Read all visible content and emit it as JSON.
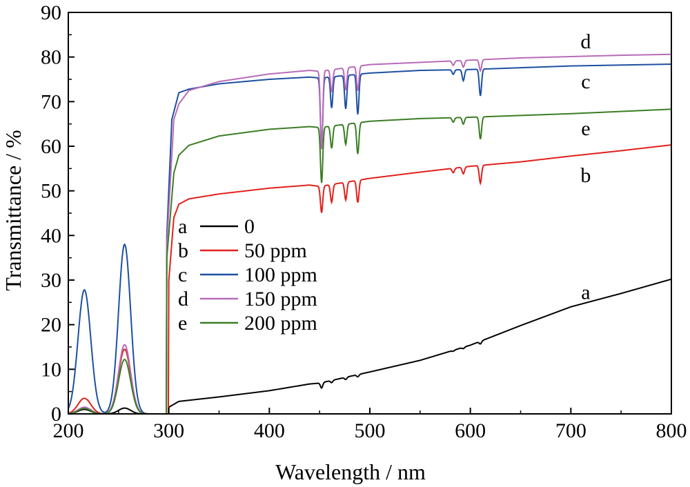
{
  "chart_data": {
    "type": "line",
    "title": "",
    "xlabel": "Wavelength / nm",
    "ylabel": "Transmittance / %",
    "xlim": [
      200,
      800
    ],
    "ylim": [
      0,
      90
    ],
    "xticks": [
      200,
      300,
      400,
      500,
      600,
      700,
      800
    ],
    "yticks": [
      0,
      10,
      20,
      30,
      40,
      50,
      60,
      70,
      80,
      90
    ],
    "grid": false,
    "legend_position": "middle-left",
    "series": [
      {
        "key": "a",
        "name": "0",
        "color": "#000000",
        "peaks_uv": [
          216,
          1.0,
          256,
          1.3
        ],
        "points": [
          [
            300,
            1.5
          ],
          [
            310,
            2.8
          ],
          [
            350,
            3.8
          ],
          [
            400,
            5.2
          ],
          [
            440,
            6.7
          ],
          [
            450,
            6.9
          ],
          [
            500,
            9.4
          ],
          [
            550,
            12.0
          ],
          [
            600,
            15.4
          ],
          [
            650,
            19.8
          ],
          [
            700,
            24.0
          ],
          [
            750,
            27.0
          ],
          [
            800,
            30.2
          ]
        ]
      },
      {
        "key": "b",
        "name": "50 ppm",
        "color": "#e0201b",
        "peaks_uv": [
          216,
          3.5,
          256,
          14.5
        ],
        "points": [
          [
            300,
            30.0
          ],
          [
            305,
            44.0
          ],
          [
            310,
            47.0
          ],
          [
            320,
            48.2
          ],
          [
            350,
            49.3
          ],
          [
            400,
            50.6
          ],
          [
            440,
            51.3
          ],
          [
            450,
            51.0
          ],
          [
            500,
            52.8
          ],
          [
            550,
            54.2
          ],
          [
            600,
            55.5
          ],
          [
            650,
            56.5
          ],
          [
            700,
            57.8
          ],
          [
            750,
            59.0
          ],
          [
            800,
            60.3
          ]
        ]
      },
      {
        "key": "c",
        "name": "100 ppm",
        "color": "#1c4fa0",
        "peaks_uv": [
          216,
          27.8,
          256,
          38.0
        ],
        "points": [
          [
            298,
            40.0
          ],
          [
            303,
            66.0
          ],
          [
            310,
            72.0
          ],
          [
            320,
            72.8
          ],
          [
            350,
            74.0
          ],
          [
            400,
            75.0
          ],
          [
            440,
            75.5
          ],
          [
            450,
            75.3
          ],
          [
            500,
            76.4
          ],
          [
            550,
            77.0
          ],
          [
            600,
            77.2
          ],
          [
            650,
            77.6
          ],
          [
            700,
            78.0
          ],
          [
            750,
            78.2
          ],
          [
            800,
            78.4
          ]
        ]
      },
      {
        "key": "d",
        "name": "150 ppm",
        "color": "#b86bb8",
        "peaks_uv": [
          216,
          1.5,
          256,
          15.5
        ],
        "points": [
          [
            298,
            38.0
          ],
          [
            305,
            66.0
          ],
          [
            310,
            69.5
          ],
          [
            320,
            72.5
          ],
          [
            350,
            74.5
          ],
          [
            400,
            76.2
          ],
          [
            440,
            77.0
          ],
          [
            450,
            76.8
          ],
          [
            500,
            78.3
          ],
          [
            550,
            78.8
          ],
          [
            600,
            79.3
          ],
          [
            650,
            79.8
          ],
          [
            700,
            80.1
          ],
          [
            750,
            80.4
          ],
          [
            800,
            80.6
          ]
        ]
      },
      {
        "key": "e",
        "name": "200 ppm",
        "color": "#3b7d23",
        "peaks_uv": [
          216,
          1.2,
          256,
          12.2
        ],
        "points": [
          [
            298,
            35.0
          ],
          [
            305,
            54.0
          ],
          [
            310,
            58.0
          ],
          [
            320,
            60.2
          ],
          [
            350,
            62.3
          ],
          [
            400,
            63.8
          ],
          [
            440,
            64.4
          ],
          [
            450,
            64.2
          ],
          [
            500,
            65.6
          ],
          [
            550,
            66.2
          ],
          [
            600,
            66.5
          ],
          [
            650,
            66.9
          ],
          [
            700,
            67.3
          ],
          [
            750,
            67.8
          ],
          [
            800,
            68.3
          ]
        ]
      }
    ],
    "absorption_dips": [
      {
        "x": 452,
        "a": 1.2,
        "b": 6.0,
        "c": 16.0,
        "d": 17.5,
        "e": 12.5
      },
      {
        "x": 462,
        "a": 0.5,
        "b": 4.0,
        "c": 7.0,
        "d": 5.0,
        "e": 5.0
      },
      {
        "x": 476,
        "a": 0.5,
        "b": 4.0,
        "c": 7.5,
        "d": 5.0,
        "e": 4.5
      },
      {
        "x": 488,
        "a": 0.5,
        "b": 5.0,
        "c": 9.0,
        "d": 5.5,
        "e": 7.0
      },
      {
        "x": 583,
        "a": 0.2,
        "b": 1.0,
        "c": 1.0,
        "d": 1.0,
        "e": 1.0
      },
      {
        "x": 593,
        "a": 0.3,
        "b": 1.5,
        "c": 2.5,
        "d": 1.5,
        "e": 1.5
      },
      {
        "x": 610,
        "a": 0.6,
        "b": 4.0,
        "c": 6.0,
        "d": 2.5,
        "e": 5.0
      }
    ],
    "curve_labels": [
      {
        "key": "d",
        "text": "d",
        "x": 710,
        "y": 83.5
      },
      {
        "key": "c",
        "text": "c",
        "x": 710,
        "y": 74.5
      },
      {
        "key": "e",
        "text": "e",
        "x": 710,
        "y": 64.0
      },
      {
        "key": "b",
        "text": "b",
        "x": 710,
        "y": 53.5
      },
      {
        "key": "a",
        "text": "a",
        "x": 710,
        "y": 27.3
      }
    ]
  }
}
